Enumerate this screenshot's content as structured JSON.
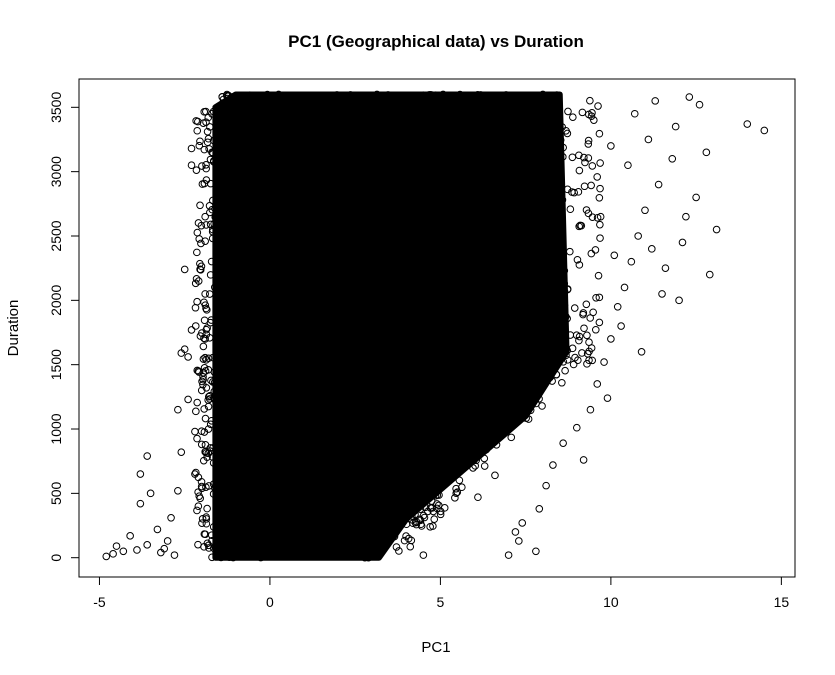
{
  "chart_data": {
    "type": "scatter",
    "title": "PC1 (Geographical data) vs Duration",
    "xlabel": "PC1",
    "ylabel": "Duration",
    "xlim": [
      -5.6,
      15.4
    ],
    "ylim": [
      -150,
      3720
    ],
    "x_ticks": [
      -5,
      0,
      5,
      10,
      15
    ],
    "y_ticks": [
      0,
      500,
      1000,
      1500,
      2000,
      2500,
      3000,
      3500
    ],
    "x_tick_labels": [
      "-5",
      "0",
      "5",
      "10",
      "15"
    ],
    "y_tick_labels": [
      "0",
      "500",
      "1000",
      "1500",
      "2000",
      "2500",
      "3000",
      "3500"
    ],
    "grid": false,
    "legend": "none",
    "marker": "open-circle",
    "marker_color": "#000000",
    "dense_region": {
      "x_range": [
        -1.6,
        8.5
      ],
      "y_range": [
        0,
        3600
      ],
      "description_points": [
        {
          "x": -1.6,
          "y": 0
        },
        {
          "x": -1.6,
          "y": 3500
        },
        {
          "x": -1.0,
          "y": 3600
        },
        {
          "x": 8.5,
          "y": 3600
        },
        {
          "x": 8.7,
          "y": 1600
        },
        {
          "x": 7.5,
          "y": 1100
        },
        {
          "x": 4.0,
          "y": 300
        },
        {
          "x": 3.2,
          "y": 0
        }
      ]
    },
    "sparse_points": [
      {
        "x": -4.8,
        "y": 10
      },
      {
        "x": -4.6,
        "y": 30
      },
      {
        "x": -4.5,
        "y": 90
      },
      {
        "x": -4.3,
        "y": 50
      },
      {
        "x": -4.1,
        "y": 170
      },
      {
        "x": -3.9,
        "y": 60
      },
      {
        "x": -3.8,
        "y": 420
      },
      {
        "x": -3.8,
        "y": 650
      },
      {
        "x": -3.6,
        "y": 100
      },
      {
        "x": -3.6,
        "y": 790
      },
      {
        "x": -3.5,
        "y": 500
      },
      {
        "x": -3.3,
        "y": 220
      },
      {
        "x": -3.2,
        "y": 40
      },
      {
        "x": -3.0,
        "y": 130
      },
      {
        "x": -2.9,
        "y": 310
      },
      {
        "x": -2.8,
        "y": 20
      },
      {
        "x": -2.7,
        "y": 1150
      },
      {
        "x": -2.6,
        "y": 1590
      },
      {
        "x": -2.5,
        "y": 1620
      },
      {
        "x": -2.5,
        "y": 2240
      },
      {
        "x": -2.4,
        "y": 1230
      },
      {
        "x": -2.4,
        "y": 1560
      },
      {
        "x": -2.3,
        "y": 3050
      },
      {
        "x": -2.3,
        "y": 3180
      },
      {
        "x": -2.3,
        "y": 1770
      },
      {
        "x": -2.2,
        "y": 980
      },
      {
        "x": -2.2,
        "y": 650
      },
      {
        "x": -2.1,
        "y": 400
      },
      {
        "x": -2.0,
        "y": 1300
      },
      {
        "x": -2.0,
        "y": 880
      },
      {
        "x": -1.9,
        "y": 1700
      },
      {
        "x": -1.9,
        "y": 2050
      },
      {
        "x": -1.9,
        "y": 2650
      },
      {
        "x": -1.8,
        "y": 1550
      },
      {
        "x": -1.8,
        "y": 1000
      },
      {
        "x": -1.7,
        "y": 3150
      },
      {
        "x": -2.6,
        "y": 820
      },
      {
        "x": -2.7,
        "y": 520
      },
      {
        "x": -3.1,
        "y": 70
      },
      {
        "x": -2.1,
        "y": 1450
      },
      {
        "x": 4.5,
        "y": 20
      },
      {
        "x": 4.7,
        "y": 240
      },
      {
        "x": 6.1,
        "y": 470
      },
      {
        "x": 6.6,
        "y": 640
      },
      {
        "x": 7.0,
        "y": 20
      },
      {
        "x": 7.2,
        "y": 200
      },
      {
        "x": 7.3,
        "y": 130
      },
      {
        "x": 7.4,
        "y": 270
      },
      {
        "x": 7.8,
        "y": 50
      },
      {
        "x": 7.9,
        "y": 380
      },
      {
        "x": 8.1,
        "y": 560
      },
      {
        "x": 8.3,
        "y": 720
      },
      {
        "x": 8.6,
        "y": 890
      },
      {
        "x": 9.0,
        "y": 1010
      },
      {
        "x": 9.4,
        "y": 1150
      },
      {
        "x": 9.6,
        "y": 1350
      },
      {
        "x": 9.8,
        "y": 1520
      },
      {
        "x": 10.0,
        "y": 1700
      },
      {
        "x": 10.2,
        "y": 1950
      },
      {
        "x": 10.4,
        "y": 2100
      },
      {
        "x": 10.6,
        "y": 2300
      },
      {
        "x": 10.8,
        "y": 2500
      },
      {
        "x": 11.0,
        "y": 2700
      },
      {
        "x": 11.2,
        "y": 2400
      },
      {
        "x": 11.4,
        "y": 2900
      },
      {
        "x": 11.6,
        "y": 2250
      },
      {
        "x": 11.8,
        "y": 3100
      },
      {
        "x": 12.0,
        "y": 2000
      },
      {
        "x": 12.2,
        "y": 2650
      },
      {
        "x": 12.3,
        "y": 3580
      },
      {
        "x": 12.5,
        "y": 2800
      },
      {
        "x": 12.6,
        "y": 3520
      },
      {
        "x": 12.8,
        "y": 3150
      },
      {
        "x": 12.9,
        "y": 2200
      },
      {
        "x": 13.1,
        "y": 2550
      },
      {
        "x": 14.0,
        "y": 3370
      },
      {
        "x": 14.5,
        "y": 3320
      },
      {
        "x": 11.9,
        "y": 3350
      },
      {
        "x": 11.1,
        "y": 3250
      },
      {
        "x": 10.5,
        "y": 3050
      },
      {
        "x": 10.9,
        "y": 1600
      },
      {
        "x": 10.3,
        "y": 1800
      },
      {
        "x": 9.9,
        "y": 1240
      },
      {
        "x": 9.2,
        "y": 760
      },
      {
        "x": 11.5,
        "y": 2050
      },
      {
        "x": 12.1,
        "y": 2450
      },
      {
        "x": 10.1,
        "y": 2350
      },
      {
        "x": 9.7,
        "y": 2650
      },
      {
        "x": 10.7,
        "y": 3450
      },
      {
        "x": 11.3,
        "y": 3550
      },
      {
        "x": 9.5,
        "y": 3400
      },
      {
        "x": 10.0,
        "y": 3200
      }
    ]
  }
}
